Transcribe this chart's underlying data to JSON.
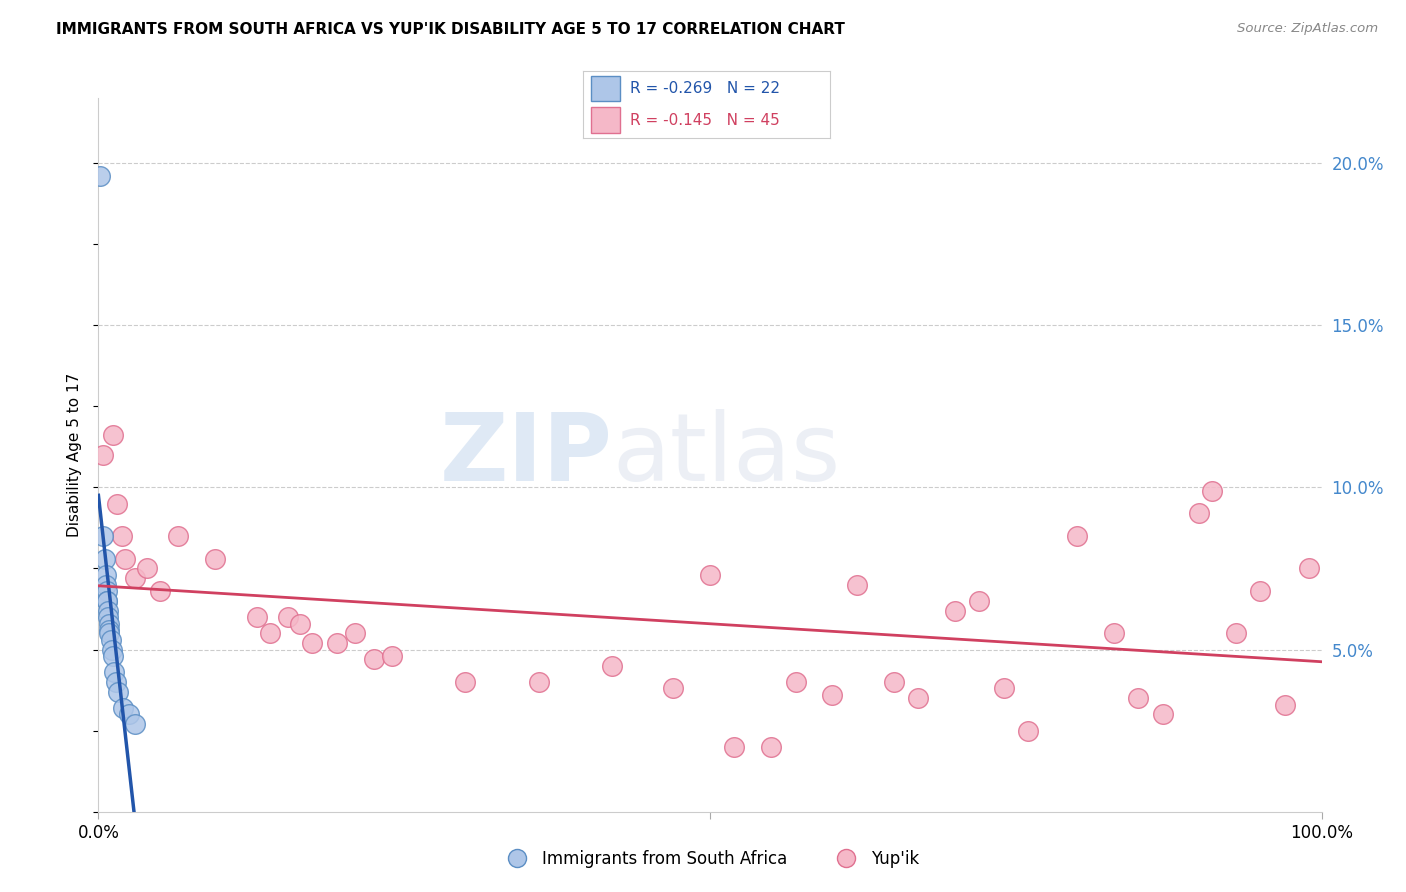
{
  "title": "IMMIGRANTS FROM SOUTH AFRICA VS YUP'IK DISABILITY AGE 5 TO 17 CORRELATION CHART",
  "source": "Source: ZipAtlas.com",
  "ylabel": "Disability Age 5 to 17",
  "xlim": [
    0,
    1.0
  ],
  "ylim": [
    0,
    0.22
  ],
  "yticks_right": [
    0.05,
    0.1,
    0.15,
    0.2
  ],
  "ytick_labels_right": [
    "5.0%",
    "10.0%",
    "15.0%",
    "20.0%"
  ],
  "blue_label": "Immigrants from South Africa",
  "pink_label": "Yup'ik",
  "blue_R": -0.269,
  "blue_N": 22,
  "pink_R": -0.145,
  "pink_N": 45,
  "blue_color": "#aec6e8",
  "blue_edge_color": "#5b8ec4",
  "blue_line_color": "#2255aa",
  "pink_color": "#f5b8c8",
  "pink_edge_color": "#e07090",
  "pink_line_color": "#d04060",
  "background_color": "#ffffff",
  "watermark_zip": "ZIP",
  "watermark_atlas": "atlas",
  "blue_points_x": [
    0.001,
    0.004,
    0.005,
    0.006,
    0.006,
    0.007,
    0.007,
    0.007,
    0.008,
    0.008,
    0.009,
    0.009,
    0.009,
    0.01,
    0.011,
    0.012,
    0.013,
    0.014,
    0.016,
    0.02,
    0.025,
    0.03
  ],
  "blue_points_y": [
    0.196,
    0.085,
    0.078,
    0.073,
    0.07,
    0.068,
    0.065,
    0.065,
    0.062,
    0.06,
    0.058,
    0.056,
    0.055,
    0.053,
    0.05,
    0.048,
    0.043,
    0.04,
    0.037,
    0.032,
    0.03,
    0.027
  ],
  "pink_points_x": [
    0.004,
    0.012,
    0.015,
    0.019,
    0.022,
    0.03,
    0.04,
    0.05,
    0.065,
    0.095,
    0.13,
    0.14,
    0.155,
    0.165,
    0.175,
    0.195,
    0.21,
    0.225,
    0.24,
    0.3,
    0.36,
    0.42,
    0.47,
    0.5,
    0.52,
    0.55,
    0.57,
    0.6,
    0.62,
    0.65,
    0.67,
    0.7,
    0.72,
    0.74,
    0.76,
    0.8,
    0.83,
    0.85,
    0.87,
    0.9,
    0.91,
    0.93,
    0.95,
    0.97,
    0.99
  ],
  "pink_points_y": [
    0.11,
    0.116,
    0.095,
    0.085,
    0.078,
    0.072,
    0.075,
    0.068,
    0.085,
    0.078,
    0.06,
    0.055,
    0.06,
    0.058,
    0.052,
    0.052,
    0.055,
    0.047,
    0.048,
    0.04,
    0.04,
    0.045,
    0.038,
    0.073,
    0.02,
    0.02,
    0.04,
    0.036,
    0.07,
    0.04,
    0.035,
    0.062,
    0.065,
    0.038,
    0.025,
    0.085,
    0.055,
    0.035,
    0.03,
    0.092,
    0.099,
    0.055,
    0.068,
    0.033,
    0.075
  ],
  "blue_line_x_solid_end": 0.03,
  "pink_line_x_start": 0.0,
  "pink_line_x_end": 1.0
}
